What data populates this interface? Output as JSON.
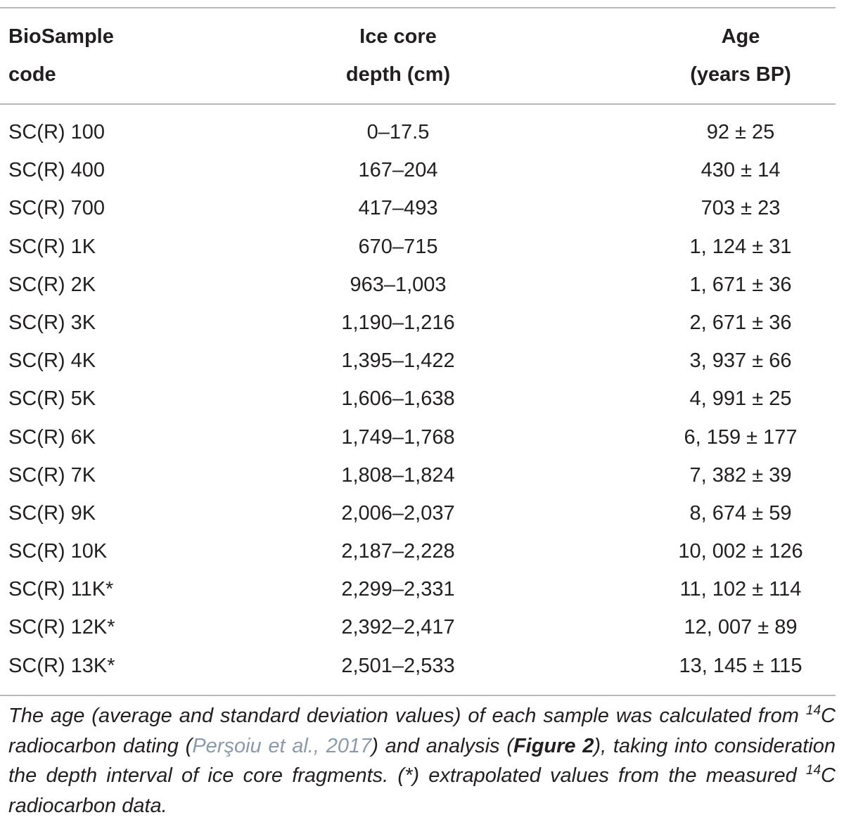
{
  "table": {
    "headers": {
      "col1": [
        "BioSample",
        "code"
      ],
      "col2": [
        "Ice core",
        "depth (cm)"
      ],
      "col3": [
        "Age",
        "(years BP)"
      ]
    },
    "rows": [
      {
        "code": "SC(R) 100",
        "depth": "0–17.5",
        "age": "92 ± 25"
      },
      {
        "code": "SC(R) 400",
        "depth": "167–204",
        "age": "430 ± 14"
      },
      {
        "code": "SC(R) 700",
        "depth": "417–493",
        "age": "703 ± 23"
      },
      {
        "code": "SC(R) 1K",
        "depth": "670–715",
        "age": "1, 124 ± 31"
      },
      {
        "code": "SC(R) 2K",
        "depth": "963–1,003",
        "age": "1, 671 ± 36"
      },
      {
        "code": "SC(R) 3K",
        "depth": "1,190–1,216",
        "age": "2, 671 ± 36"
      },
      {
        "code": "SC(R) 4K",
        "depth": "1,395–1,422",
        "age": "3, 937 ± 66"
      },
      {
        "code": "SC(R) 5K",
        "depth": "1,606–1,638",
        "age": "4, 991 ± 25"
      },
      {
        "code": "SC(R) 6K",
        "depth": "1,749–1,768",
        "age": "6, 159 ± 177"
      },
      {
        "code": "SC(R) 7K",
        "depth": "1,808–1,824",
        "age": "7, 382 ± 39"
      },
      {
        "code": "SC(R) 9K",
        "depth": "2,006–2,037",
        "age": "8, 674 ± 59"
      },
      {
        "code": "SC(R) 10K",
        "depth": "2,187–2,228",
        "age": "10, 002 ± 126"
      },
      {
        "code": "SC(R) 11K*",
        "depth": "2,299–2,331",
        "age": "11, 102 ± 114"
      },
      {
        "code": "SC(R) 12K*",
        "depth": "2,392–2,417",
        "age": "12, 007 ± 89"
      },
      {
        "code": "SC(R) 13K*",
        "depth": "2,501–2,533",
        "age": "13, 145 ± 115"
      }
    ]
  },
  "footnote": {
    "part1": "The age (average and standard deviation values) of each sample was calculated from ",
    "sup1": "14",
    "part2": "C radiocarbon dating (",
    "ref_link": "Perşoiu et al., 2017",
    "part3": ") and analysis (",
    "figure_link": "Figure 2",
    "part4": "), taking into consideration the depth interval of ice core fragments. (*) extrapolated values from the measured ",
    "sup2": "14",
    "part5": "C radiocarbon data."
  },
  "colors": {
    "text": "#231f20",
    "rule": "#b8b8b8",
    "reference_link": "#8a9aae"
  }
}
